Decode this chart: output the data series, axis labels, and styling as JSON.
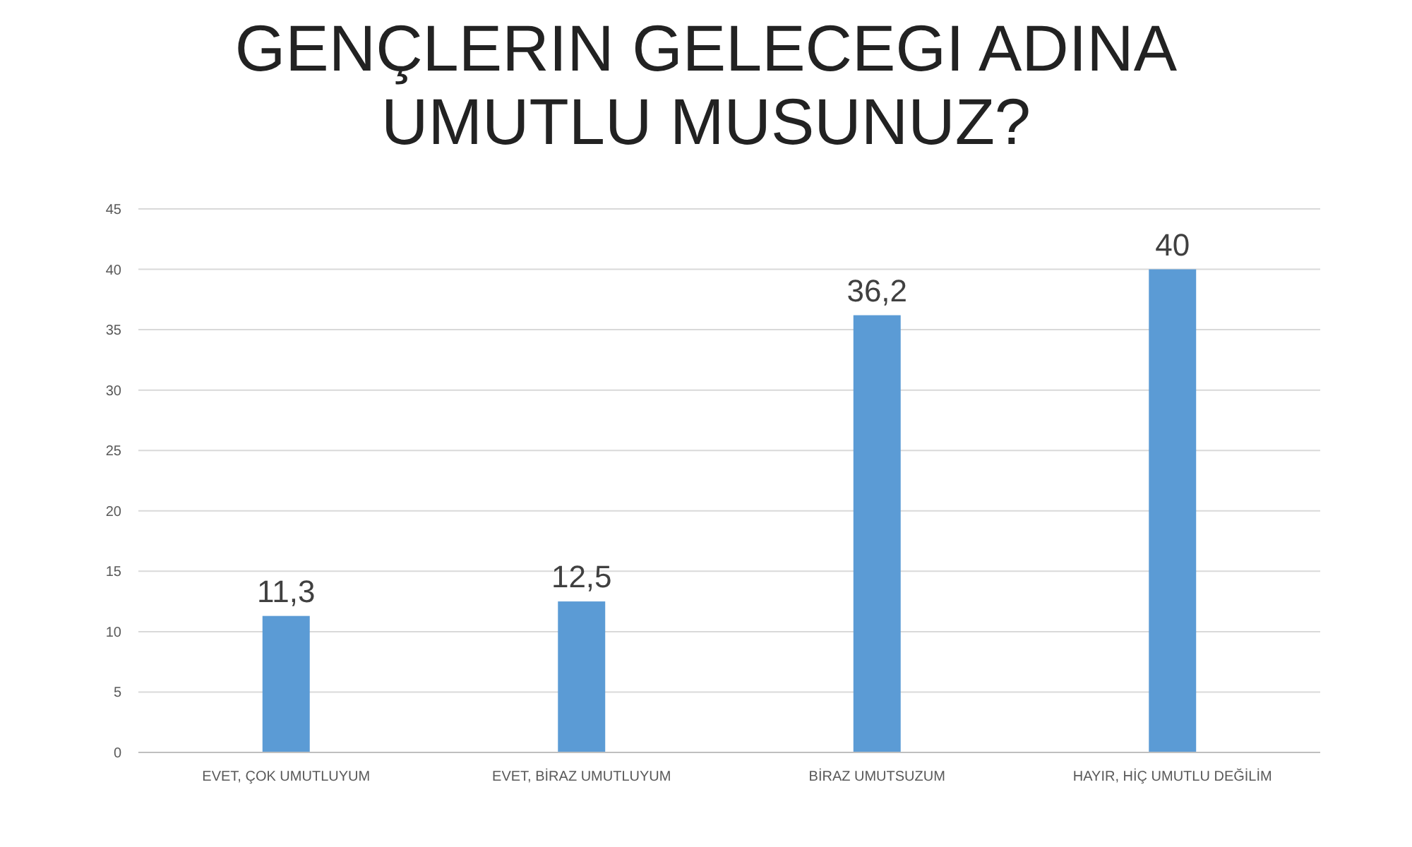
{
  "chart_data": {
    "type": "bar",
    "title": "GENÇLERIN GELECEGI ADINA UMUTLU MUSUNUZ?",
    "categories": [
      "EVET, ÇOK UMUTLUYUM",
      "EVET, BİRAZ UMUTLUYUM",
      "BİRAZ UMUTSUZUM",
      "HAYIR, HİÇ UMUTLU DEĞİLİM"
    ],
    "values": [
      11.3,
      12.5,
      36.2,
      40
    ],
    "value_labels": [
      "11,3",
      "12,5",
      "36,2",
      "40"
    ],
    "color": "#5b9bd5",
    "ylim": [
      0,
      45
    ],
    "yticks": [
      0,
      5,
      10,
      15,
      20,
      25,
      30,
      35,
      40,
      45
    ],
    "grid": "y"
  }
}
